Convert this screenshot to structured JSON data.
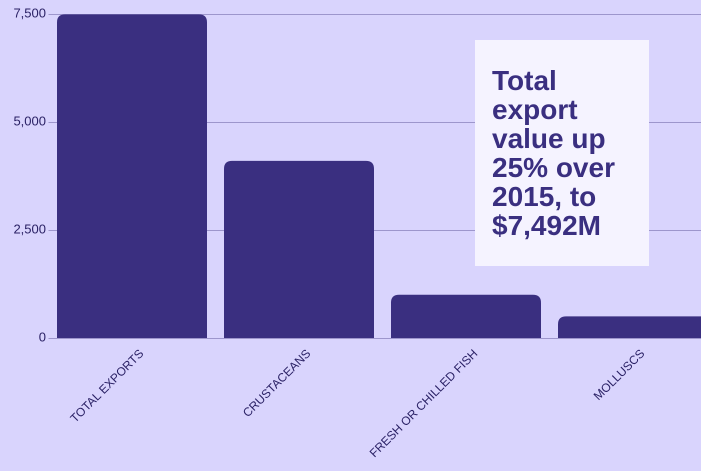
{
  "chart_data": {
    "type": "bar",
    "categories": [
      "TOTAL EXPORTS",
      "CRUSTACEANS",
      "FRESH OR CHILLED FISH",
      "MOLLUSCS"
    ],
    "values": [
      7492,
      4100,
      1000,
      500
    ],
    "color": "#3a2f80",
    "ylim": [
      0,
      7500
    ],
    "yticks": [
      0,
      {
        "value": 2500,
        "label": "2,500"
      },
      {
        "value": 5000,
        "label": "5,000"
      },
      {
        "value": 7500,
        "label": "7,500"
      }
    ],
    "grid": true,
    "annotation": "Total export value up 25% over 2015, to $7,492M"
  }
}
